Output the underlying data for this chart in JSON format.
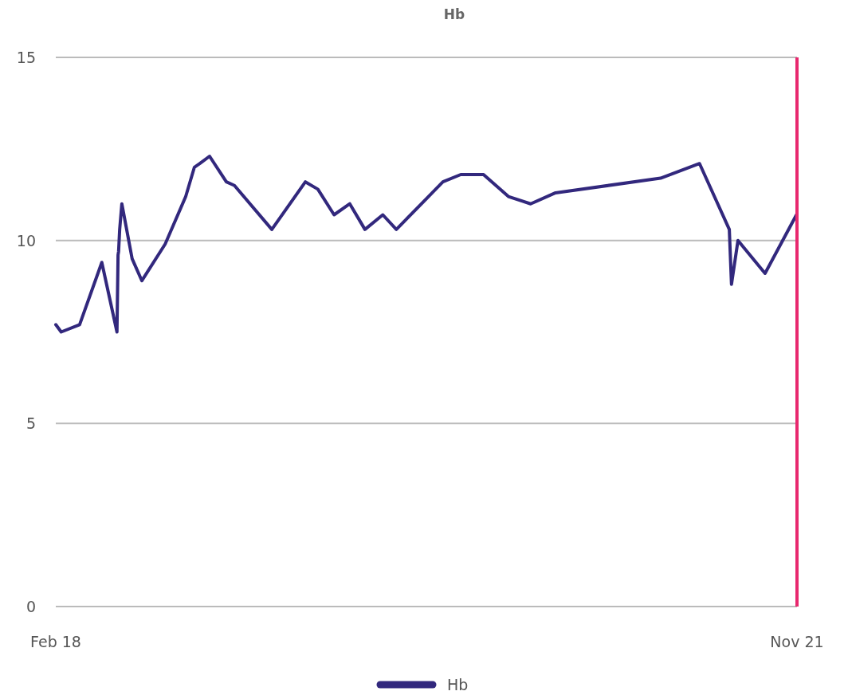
{
  "chart_data": {
    "type": "line",
    "title": "Hb",
    "x": [
      "2018-02-01",
      "2018-02-11",
      "2018-03-17",
      "2018-04-27",
      "2018-05-25",
      "2018-05-27",
      "2018-05-28",
      "2018-05-30",
      "2018-06-03",
      "2018-06-22",
      "2018-07-10",
      "2018-08-22",
      "2018-09-29",
      "2018-10-15",
      "2018-10-25",
      "2018-11-12",
      "2018-12-13",
      "2018-12-28",
      "2019-03-07",
      "2019-05-08",
      "2019-05-31",
      "2019-06-30",
      "2019-07-29",
      "2019-08-26",
      "2019-09-28",
      "2019-10-23",
      "2020-01-17",
      "2020-02-19",
      "2020-04-01",
      "2020-05-17",
      "2020-06-27",
      "2020-08-12",
      "2021-02-22",
      "2021-05-05",
      "2021-06-29",
      "2021-07-03",
      "2021-07-15",
      "2021-09-03",
      "2021-10-31"
    ],
    "series": [
      {
        "name": "Hb",
        "color": "#32287d",
        "values": [
          7.7,
          7.5,
          7.7,
          9.4,
          7.5,
          9.6,
          9.7,
          10.3,
          11.0,
          9.5,
          8.9,
          9.9,
          11.2,
          12.0,
          12.1,
          12.3,
          11.6,
          11.5,
          10.3,
          11.6,
          11.4,
          10.7,
          11.0,
          10.3,
          10.7,
          10.3,
          11.6,
          11.8,
          11.8,
          11.2,
          11.0,
          11.3,
          11.7,
          12.1,
          10.3,
          8.8,
          10.0,
          9.1,
          10.7
        ]
      }
    ],
    "xlim": [
      "2018-02-01",
      "2021-11-01"
    ],
    "xticks": [
      {
        "value": "2018-02-01",
        "label": "Feb 18"
      },
      {
        "value": "2021-11-01",
        "label": "Nov 21"
      }
    ],
    "ylim": [
      0,
      15
    ],
    "yticks": [
      0,
      5,
      10,
      15
    ],
    "grid": "y",
    "legend": "bottom",
    "marker": "none",
    "line_style": "solid",
    "ref_lines": [
      {
        "axis": "x",
        "value": "2021-11-01",
        "label": null,
        "color": "#e8286e"
      }
    ]
  }
}
